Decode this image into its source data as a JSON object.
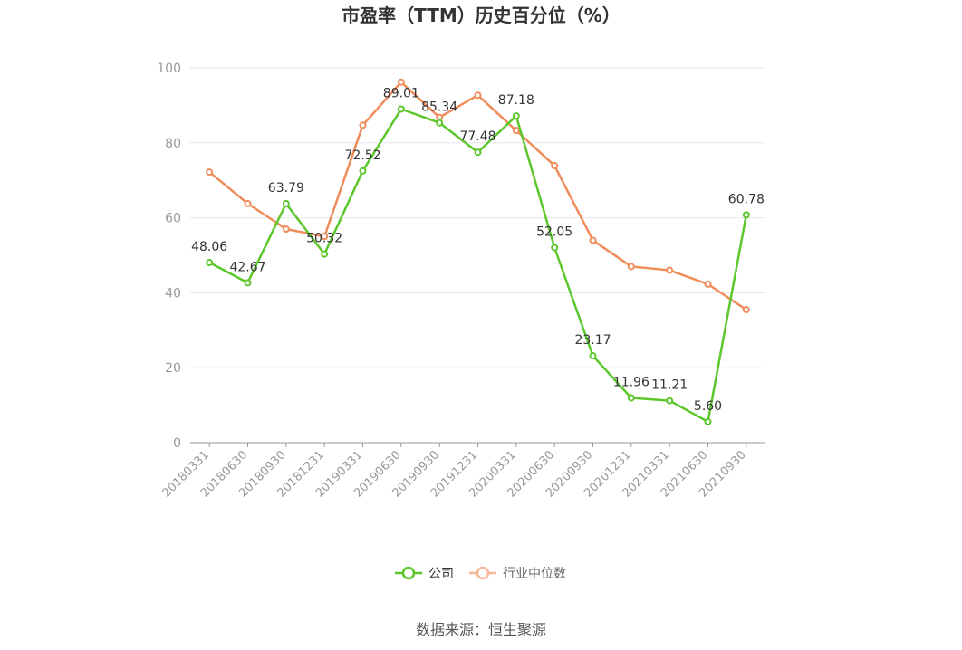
{
  "chart_data": {
    "type": "line",
    "title": "市盈率（TTM）历史百分位（%）",
    "categories": [
      "20180331",
      "20180630",
      "20180930",
      "20181231",
      "20190331",
      "20190630",
      "20190930",
      "20191231",
      "20200331",
      "20200630",
      "20200930",
      "20201231",
      "20210331",
      "20210630",
      "20210930"
    ],
    "series": [
      {
        "name": "公司",
        "color": "#5cc72c",
        "values": [
          48.06,
          42.67,
          63.79,
          50.32,
          72.52,
          89.01,
          85.34,
          77.48,
          87.18,
          52.05,
          23.17,
          11.96,
          11.21,
          5.6,
          60.78
        ],
        "labels": [
          "48.06",
          "42.67",
          "63.79",
          "50.32",
          "72.52",
          "89.01",
          "85.34",
          "77.48",
          "87.18",
          "52.05",
          "23.17",
          "11.96",
          "11.21",
          "5.60",
          "60.78"
        ]
      },
      {
        "name": "行业中位数",
        "color": "#f08c5a",
        "values": [
          72.2,
          63.8,
          57.0,
          55.0,
          84.7,
          96.2,
          86.8,
          92.7,
          83.3,
          73.9,
          54.0,
          47.0,
          46.0,
          42.3,
          35.5
        ]
      }
    ],
    "yticks": [
      "0",
      "20",
      "40",
      "60",
      "80",
      "100"
    ],
    "ylim": [
      0,
      100
    ],
    "grid": true,
    "legend_position": "bottom"
  },
  "source_text": "数据来源：恒生聚源"
}
